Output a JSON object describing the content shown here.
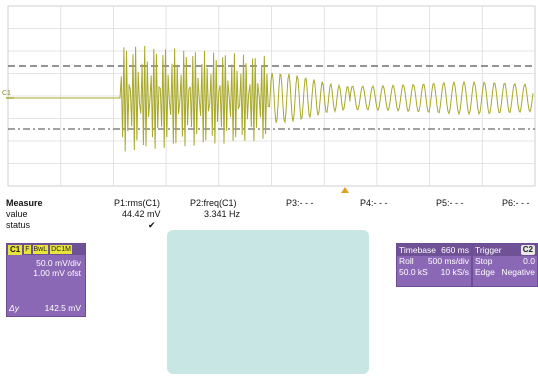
{
  "scope": {
    "channel_marker": "C1"
  },
  "measure": {
    "title": "Measure",
    "row_labels": [
      "value",
      "status"
    ],
    "columns": [
      {
        "header": "P1:rms(C1)",
        "value": "44.42 mV",
        "status": "✔"
      },
      {
        "header": "P2:freq(C1)",
        "value": "3.341 Hz",
        "status": ""
      },
      {
        "header": "P3:- - -",
        "value": "",
        "status": ""
      },
      {
        "header": "P4:- - -",
        "value": "",
        "status": ""
      },
      {
        "header": "P5:- - -",
        "value": "",
        "status": ""
      },
      {
        "header": "P6:- - -",
        "value": "",
        "status": ""
      }
    ]
  },
  "channel1": {
    "name": "C1",
    "badges": [
      "F",
      "BwL",
      "DC1M"
    ],
    "vdiv": "50.0 mV/div",
    "offset": "1.00 mV ofst",
    "delta_label": "Δy",
    "delta_value": "142.5 mV"
  },
  "timebase": {
    "label": "Timebase",
    "value": "660 ms",
    "mode": "Roll",
    "rate": "500 ms/div",
    "samples": "50.0 kS",
    "srate": "10 kS/s"
  },
  "trigger": {
    "label": "Trigger",
    "channel": "C2",
    "mode": "Stop",
    "level": "0.0",
    "type": "Edge",
    "slope": "Negative"
  },
  "colors": {
    "trace": "#a8a82a",
    "panel": "#8b68b5",
    "panel_header": "#6f5196",
    "overlay": "#c8e6e3"
  }
}
